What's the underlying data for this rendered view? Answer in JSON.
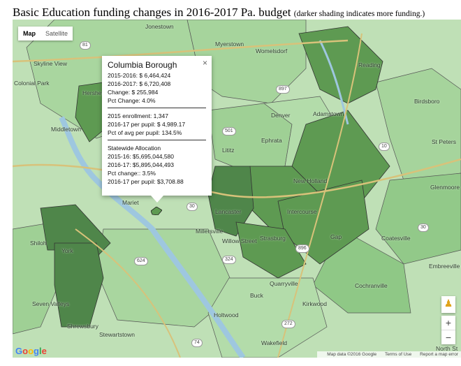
{
  "page": {
    "title": "Basic Education funding changes in 2016-2017 Pa. budget",
    "subtitle": "(darker shading indicates more funding.)"
  },
  "map_controls": {
    "map_label": "Map",
    "satellite_label": "Satellite",
    "pegman_icon": "pegman-icon",
    "zoom_in": "+",
    "zoom_out": "−"
  },
  "info_window": {
    "close_icon": "×",
    "district_name": "Columbia Borough",
    "lines": [
      "2015-2016: $ 6,464,424",
      "2016-2017: $ 6,720,408",
      "Change: $ 255,984",
      "Pct Change: 4.0%"
    ],
    "lines2": [
      "2015 enrollment: 1,347",
      "2016-17 per pupil: $ 4,989.17",
      "Pct of avg per pupil: 134.5%"
    ],
    "lines3": [
      "Statewide Allocation",
      "2015-16: $5,695,044,580",
      "2016-17: $5,895,044,493",
      "Pct change:: 3.5%",
      "2016-17 per pupil: $3,708.88"
    ]
  },
  "places": [
    "Jonestown",
    "Myerstown",
    "Womelsdorf",
    "Reading",
    "Skyline View",
    "Colonial Park",
    "Hershey",
    "Middletown",
    "Denver",
    "Adamstown",
    "Birdsboro",
    "Lititz",
    "Ephrata",
    "St Peters",
    "New Holland",
    "Glenmoore",
    "Lancaster",
    "Intercourse",
    "Millersville",
    "Willow Street",
    "Strasburg",
    "Gap",
    "Coatesville",
    "Shiloh",
    "York",
    "Embreeville",
    "Seven Valleys",
    "Quarryville",
    "Cochranville",
    "Buck",
    "Kirkwood",
    "Holtwood",
    "Shrewsbury",
    "Stewartstown",
    "Wakefield",
    "North St",
    "Mariet"
  ],
  "attribution": {
    "data": "Map data ©2016 Google",
    "terms": "Terms of Use",
    "report": "Report a map error"
  },
  "colors": {
    "light": "#bfe0b6",
    "medium": "#8fc886",
    "dark": "#5e9a52",
    "darkest": "#3f6d37"
  }
}
